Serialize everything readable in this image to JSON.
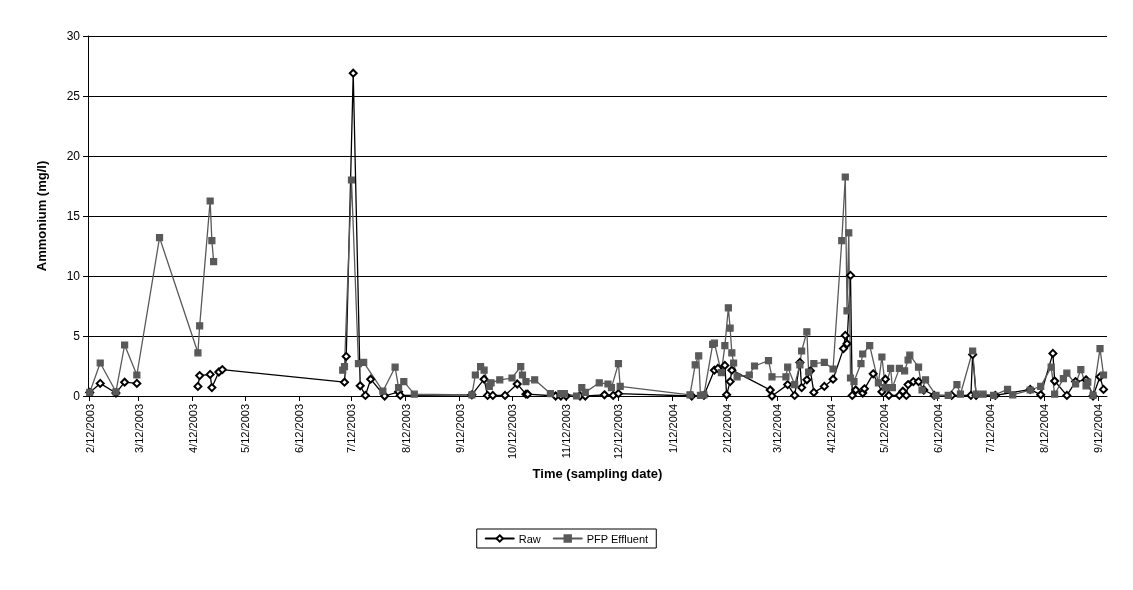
{
  "chart_data": {
    "type": "line",
    "xlabel": "Time (sampling date)",
    "ylabel": "Ammonium (mg/l)",
    "xlim": [
      "2003-02-11",
      "2004-09-17"
    ],
    "ylim": [
      0,
      30
    ],
    "yticks": [
      0,
      5,
      10,
      15,
      20,
      25,
      30
    ],
    "xticks": [
      {
        "value": "2003-02-12",
        "label": "2/12/2003"
      },
      {
        "value": "2003-03-12",
        "label": "3/12/2003"
      },
      {
        "value": "2003-04-12",
        "label": "4/12/2003"
      },
      {
        "value": "2003-05-12",
        "label": "5/12/2003"
      },
      {
        "value": "2003-06-12",
        "label": "6/12/2003"
      },
      {
        "value": "2003-07-12",
        "label": "7/12/2003"
      },
      {
        "value": "2003-08-12",
        "label": "8/12/2003"
      },
      {
        "value": "2003-09-12",
        "label": "9/12/2003"
      },
      {
        "value": "2003-10-12",
        "label": "10/12/2003"
      },
      {
        "value": "2003-11-12",
        "label": "11/12/2003"
      },
      {
        "value": "2003-12-12",
        "label": "12/12/2003"
      },
      {
        "value": "2004-01-12",
        "label": "1/12/2004"
      },
      {
        "value": "2004-02-12",
        "label": "2/12/2004"
      },
      {
        "value": "2004-03-12",
        "label": "3/12/2004"
      },
      {
        "value": "2004-04-12",
        "label": "4/12/2004"
      },
      {
        "value": "2004-05-12",
        "label": "5/12/2004"
      },
      {
        "value": "2004-06-12",
        "label": "6/12/2004"
      },
      {
        "value": "2004-07-12",
        "label": "7/12/2004"
      },
      {
        "value": "2004-08-12",
        "label": "8/12/2004"
      },
      {
        "value": "2004-09-12",
        "label": "9/12/2004"
      }
    ],
    "grid": "y",
    "legend": "bottom",
    "line_style": "solid",
    "series": [
      {
        "name": "Raw",
        "color": "#000000",
        "marker": "diamond",
        "x": [
          "2003-02-12",
          "2003-02-18",
          "2003-02-27",
          "2003-03-04",
          "2003-03-11",
          "2003-03-28",
          "2003-04-15",
          "2003-04-16",
          "2003-04-22",
          "2003-04-23",
          "2003-04-27",
          "2003-04-29",
          "2003-07-08",
          "2003-07-09",
          "2003-07-13",
          "2003-07-17",
          "2003-07-20",
          "2003-07-23",
          "2003-07-31",
          "2003-08-08",
          "2003-08-09",
          "2003-09-19",
          "2003-09-26",
          "2003-09-28",
          "2003-10-01",
          "2003-10-08",
          "2003-10-15",
          "2003-10-20",
          "2003-10-21",
          "2003-11-06",
          "2003-11-09",
          "2003-11-12",
          "2003-11-20",
          "2003-11-23",
          "2003-12-04",
          "2003-12-09",
          "2003-12-12",
          "2004-01-23",
          "2004-01-30",
          "2004-02-05",
          "2004-02-07",
          "2004-02-11",
          "2004-02-12",
          "2004-02-14",
          "2004-02-15",
          "2004-03-08",
          "2004-03-09",
          "2004-03-18",
          "2004-03-22",
          "2004-03-25",
          "2004-03-26",
          "2004-03-29",
          "2004-03-31",
          "2004-04-02",
          "2004-04-08",
          "2004-04-13",
          "2004-04-19",
          "2004-04-20",
          "2004-04-21",
          "2004-04-23",
          "2004-04-24",
          "2004-04-26",
          "2004-04-30",
          "2004-05-01",
          "2004-05-06",
          "2004-05-11",
          "2004-05-13",
          "2004-05-15",
          "2004-05-21",
          "2004-05-23",
          "2004-05-25",
          "2004-05-26",
          "2004-05-29",
          "2004-06-01",
          "2004-06-04",
          "2004-06-10",
          "2004-06-20",
          "2004-07-01",
          "2004-07-02",
          "2004-07-04",
          "2004-07-15",
          "2004-08-04",
          "2004-08-10",
          "2004-08-17",
          "2004-08-18",
          "2004-08-25",
          "2004-08-30",
          "2004-09-05",
          "2004-09-09",
          "2004-09-13",
          "2004-09-15"
        ],
        "values": [
          0.3,
          1.05,
          0.25,
          1.15,
          1.05,
          null,
          0.8,
          1.7,
          1.8,
          0.7,
          2.0,
          2.2,
          1.15,
          3.3,
          26.9,
          0.85,
          0.05,
          1.4,
          0,
          0.35,
          0.05,
          0.1,
          1.4,
          0.05,
          0.05,
          0.05,
          1.0,
          0.15,
          0.15,
          0,
          0,
          0,
          0,
          0,
          0.1,
          0.05,
          0.2,
          0,
          0.05,
          2.15,
          2.3,
          2.55,
          0.1,
          1.2,
          2.15,
          0.5,
          0,
          0.95,
          0.05,
          2.8,
          0.7,
          1.35,
          2.1,
          0.3,
          0.8,
          1.4,
          3.95,
          5.05,
          4.35,
          10.05,
          0.05,
          0.5,
          0.25,
          0.6,
          1.85,
          0.35,
          1.4,
          0.05,
          0.05,
          0.4,
          0.05,
          0.95,
          1.2,
          1.2,
          0.5,
          0.05,
          0.05,
          0.05,
          3.45,
          0.05,
          0.05,
          0.55,
          0.1,
          3.55,
          1.25,
          0.05,
          1.2,
          1.35,
          0,
          1.6,
          0.55
        ]
      },
      {
        "name": "PFP Effluent",
        "color": "#595959",
        "marker": "square",
        "x": [
          "2003-02-12",
          "2003-02-18",
          "2003-02-27",
          "2003-03-04",
          "2003-03-11",
          "2003-03-24",
          "2003-04-15",
          "2003-04-16",
          "2003-04-22",
          "2003-04-23",
          "2003-04-24",
          "2003-06-01",
          "2003-07-07",
          "2003-07-08",
          "2003-07-12",
          "2003-07-16",
          "2003-07-19",
          "2003-07-30",
          "2003-08-06",
          "2003-08-08",
          "2003-08-11",
          "2003-08-17",
          "2003-09-19",
          "2003-09-21",
          "2003-09-24",
          "2003-09-26",
          "2003-09-29",
          "2003-09-30",
          "2003-10-05",
          "2003-10-12",
          "2003-10-17",
          "2003-10-18",
          "2003-10-20",
          "2003-10-25",
          "2003-11-03",
          "2003-11-09",
          "2003-11-11",
          "2003-11-18",
          "2003-11-21",
          "2003-11-23",
          "2003-12-01",
          "2003-12-06",
          "2003-12-08",
          "2003-12-12",
          "2003-12-13",
          "2004-01-22",
          "2004-01-25",
          "2004-01-27",
          "2004-01-28",
          "2004-01-30",
          "2004-02-04",
          "2004-02-05",
          "2004-02-09",
          "2004-02-11",
          "2004-02-13",
          "2004-02-14",
          "2004-02-15",
          "2004-02-16",
          "2004-02-18",
          "2004-02-25",
          "2004-02-28",
          "2004-03-07",
          "2004-03-09",
          "2004-03-17",
          "2004-03-18",
          "2004-03-22",
          "2004-03-25",
          "2004-03-26",
          "2004-03-29",
          "2004-03-30",
          "2004-04-02",
          "2004-04-08",
          "2004-04-13",
          "2004-04-18",
          "2004-04-20",
          "2004-04-21",
          "2004-04-22",
          "2004-04-23",
          "2004-04-25",
          "2004-04-29",
          "2004-04-30",
          "2004-05-04",
          "2004-05-09",
          "2004-05-11",
          "2004-05-13",
          "2004-05-16",
          "2004-05-17",
          "2004-05-21",
          "2004-05-24",
          "2004-05-26",
          "2004-05-27",
          "2004-06-01",
          "2004-06-03",
          "2004-06-05",
          "2004-06-11",
          "2004-06-18",
          "2004-06-23",
          "2004-06-25",
          "2004-07-02",
          "2004-07-04",
          "2004-07-08",
          "2004-07-14",
          "2004-07-22",
          "2004-07-25",
          "2004-08-04",
          "2004-08-10",
          "2004-08-16",
          "2004-08-18",
          "2004-08-23",
          "2004-08-25",
          "2004-08-30",
          "2004-09-02",
          "2004-09-05",
          "2004-09-06",
          "2004-09-09",
          "2004-09-13",
          "2004-09-15"
        ],
        "values": [
          0.3,
          2.75,
          0.35,
          4.25,
          1.75,
          13.2,
          3.6,
          5.85,
          16.25,
          12.95,
          11.2,
          null,
          2.15,
          2.45,
          18.0,
          2.7,
          2.8,
          0.4,
          2.4,
          0.7,
          1.2,
          0.15,
          0.1,
          1.75,
          2.45,
          2.15,
          0.8,
          1.1,
          1.35,
          1.5,
          2.45,
          1.75,
          1.2,
          1.35,
          0.2,
          0.2,
          0.2,
          0,
          0.7,
          0.3,
          1.1,
          1.0,
          0.7,
          2.7,
          0.8,
          0.1,
          2.6,
          3.35,
          0.05,
          0.1,
          4.3,
          4.4,
          1.95,
          4.2,
          7.35,
          5.65,
          3.6,
          2.75,
          1.6,
          1.75,
          2.5,
          2.95,
          1.6,
          1.6,
          2.4,
          0.95,
          2.6,
          3.75,
          5.35,
          2.0,
          2.7,
          2.8,
          2.25,
          12.95,
          18.25,
          7.1,
          13.6,
          1.5,
          1.2,
          2.7,
          3.5,
          4.2,
          1.1,
          3.25,
          0.7,
          2.3,
          0.7,
          2.3,
          2.1,
          3.0,
          3.4,
          2.4,
          0.5,
          1.35,
          0.05,
          0.05,
          0.95,
          0.15,
          3.75,
          0.15,
          0.15,
          0.05,
          0.55,
          0.1,
          0.5,
          0.8,
          2.4,
          0.15,
          1.45,
          1.9,
          1.0,
          2.2,
          0.85,
          1.15,
          0.05,
          3.95,
          1.75
        ]
      }
    ]
  }
}
